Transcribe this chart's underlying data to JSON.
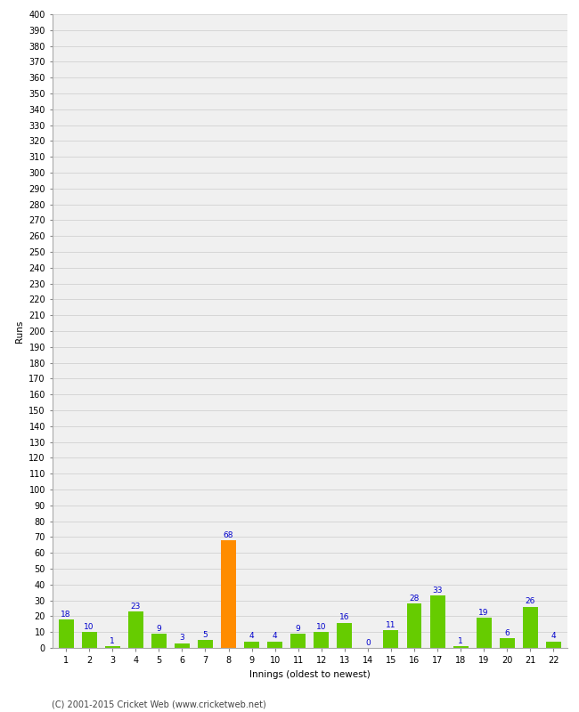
{
  "innings": [
    1,
    2,
    3,
    4,
    5,
    6,
    7,
    8,
    9,
    10,
    11,
    12,
    13,
    14,
    15,
    16,
    17,
    18,
    19,
    20,
    21,
    22
  ],
  "runs": [
    18,
    10,
    1,
    23,
    9,
    3,
    5,
    68,
    4,
    4,
    9,
    10,
    16,
    0,
    11,
    28,
    33,
    1,
    19,
    6,
    26,
    4
  ],
  "bar_colors": [
    "#66cc00",
    "#66cc00",
    "#66cc00",
    "#66cc00",
    "#66cc00",
    "#66cc00",
    "#66cc00",
    "#ff8c00",
    "#66cc00",
    "#66cc00",
    "#66cc00",
    "#66cc00",
    "#66cc00",
    "#66cc00",
    "#66cc00",
    "#66cc00",
    "#66cc00",
    "#66cc00",
    "#66cc00",
    "#66cc00",
    "#66cc00",
    "#66cc00"
  ],
  "xlabel": "Innings (oldest to newest)",
  "ylabel": "Runs",
  "ylim": [
    0,
    400
  ],
  "label_color": "#0000cc",
  "label_fontsize": 6.5,
  "axis_fontsize": 7.5,
  "tick_fontsize": 7,
  "background_color": "#f0f0f0",
  "footer": "(C) 2001-2015 Cricket Web (www.cricketweb.net)",
  "footer_fontsize": 7
}
